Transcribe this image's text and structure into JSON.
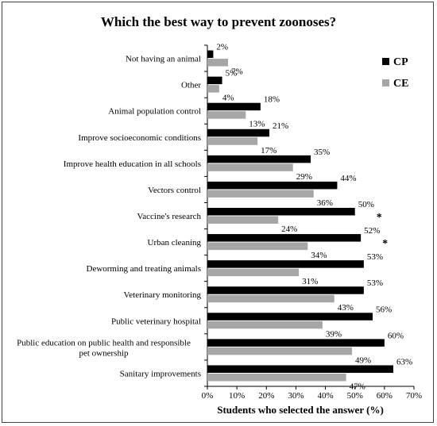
{
  "chart_data": {
    "type": "bar",
    "orientation": "horizontal",
    "title": "Which the best way to prevent zoonoses?",
    "xlabel": "Students who selected the answer (%)",
    "ylabel": "",
    "xlim": [
      0,
      70
    ],
    "xticks": [
      "0%",
      "10%",
      "20%",
      "30%",
      "40%",
      "50%",
      "60%",
      "70%"
    ],
    "legend_position": "top-right",
    "grid": false,
    "categories": [
      "Not having an animal",
      "Other",
      "Animal population control",
      "Improve socioeconomic conditions",
      "Improve health education in all schools",
      "Vectors control",
      "Vaccine's research",
      "Urban cleaning",
      "Deworming and treating animals",
      "Veterinary monitoring",
      "Public veterinary hospital",
      "Public education on public health and responsible pet ownership",
      "Sanitary improvements"
    ],
    "series": [
      {
        "name": "CP",
        "color": "#000000",
        "values": [
          2,
          5,
          18,
          21,
          35,
          44,
          50,
          52,
          53,
          53,
          56,
          60,
          63
        ],
        "labels": [
          "2%",
          "5%",
          "18%",
          "21%",
          "35%",
          "44%",
          "50%",
          "52%",
          "53%",
          "53%",
          "56%",
          "60%",
          "63%"
        ]
      },
      {
        "name": "CE",
        "color": "#a6a6a6",
        "values": [
          7,
          4,
          13,
          17,
          29,
          36,
          24,
          34,
          31,
          43,
          39,
          49,
          47
        ],
        "labels": [
          "7%",
          "4%",
          "13%",
          "17%",
          "29%",
          "36%",
          "24%",
          "34%",
          "31%",
          "43%",
          "39%",
          "49%",
          "47%"
        ]
      }
    ],
    "annotations": [
      {
        "category": "Vaccine's research",
        "text": "*"
      },
      {
        "category": "Urban cleaning",
        "text": "*"
      }
    ]
  }
}
